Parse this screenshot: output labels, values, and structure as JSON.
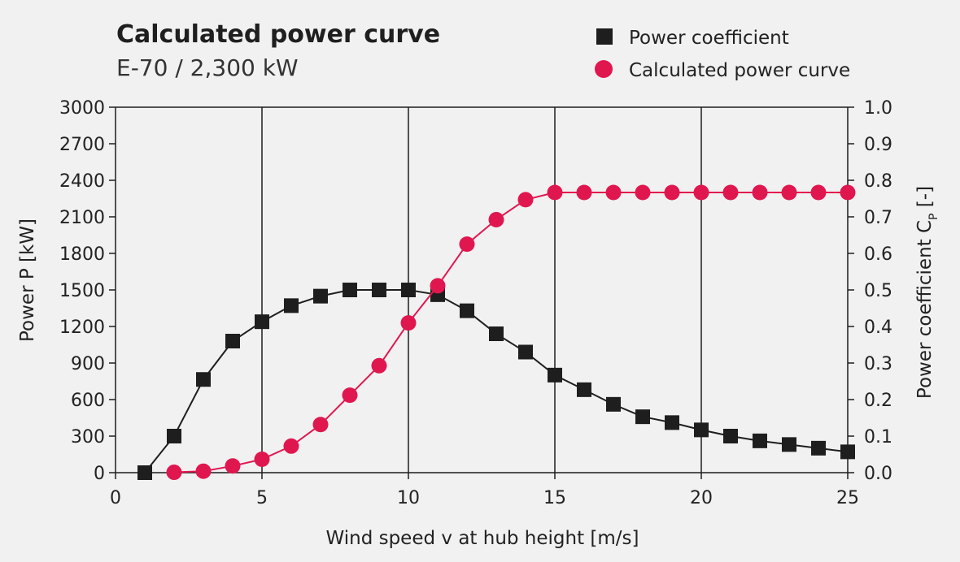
{
  "chart_data": {
    "type": "line",
    "title": "Calculated power curve",
    "subtitle": "E-70 / 2,300 kW",
    "xlabel": "Wind speed v at hub height [m/s]",
    "ylabel_left": "Power P [kW]",
    "ylabel_right": "Power coefficient C",
    "ylabel_right_subscript": "P",
    "ylabel_right_suffix": " [-]",
    "xlim": [
      0,
      25
    ],
    "ylim_left": [
      0,
      3000
    ],
    "ylim_right": [
      0.0,
      1.0
    ],
    "x_ticks": [
      0,
      5,
      10,
      15,
      20,
      25
    ],
    "y_left_ticks": [
      "0",
      "300",
      "600",
      "900",
      "1200",
      "1500",
      "1800",
      "2100",
      "2400",
      "2700",
      "3000"
    ],
    "y_right_ticks": [
      "0.0",
      "0.1",
      "0.2",
      "0.3",
      "0.4",
      "0.5",
      "0.6",
      "0.7",
      "0.8",
      "0.9",
      "1.0"
    ],
    "x_gridlines": [
      5,
      10,
      15,
      20
    ],
    "grid": "vertical",
    "legend_placement": "top-right",
    "series": [
      {
        "name": "Power coefficient",
        "axis": "right",
        "marker": "square",
        "color": "#1e1e1e",
        "x": [
          1,
          2,
          3,
          4,
          5,
          6,
          7,
          8,
          9,
          10,
          11,
          12,
          13,
          14,
          15,
          16,
          17,
          18,
          19,
          20,
          21,
          22,
          23,
          24,
          25
        ],
        "values": [
          0.0,
          0.1,
          0.255,
          0.36,
          0.413,
          0.457,
          0.483,
          0.5,
          0.5,
          0.5,
          0.487,
          0.443,
          0.38,
          0.33,
          0.267,
          0.227,
          0.187,
          0.153,
          0.137,
          0.117,
          0.1,
          0.087,
          0.077,
          0.067,
          0.057
        ]
      },
      {
        "name": "Calculated power curve",
        "axis": "left",
        "marker": "circle",
        "color": "#e0174f",
        "x": [
          2,
          3,
          4,
          5,
          6,
          7,
          8,
          9,
          10,
          11,
          12,
          13,
          14,
          15,
          16,
          17,
          18,
          19,
          20,
          21,
          22,
          23,
          24,
          25
        ],
        "values": [
          3,
          12,
          55,
          110,
          218,
          395,
          636,
          878,
          1229,
          1534,
          1876,
          2077,
          2241,
          2300,
          2300,
          2300,
          2300,
          2300,
          2300,
          2300,
          2300,
          2300,
          2300,
          2300
        ]
      }
    ]
  }
}
